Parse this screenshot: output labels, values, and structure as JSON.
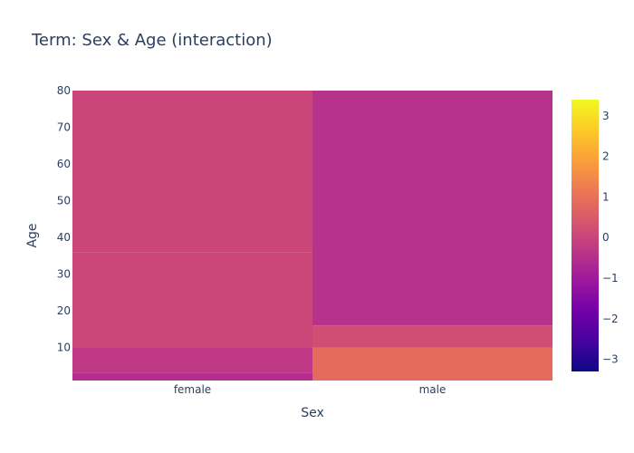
{
  "chart_data": {
    "type": "heatmap",
    "title": "Term: Sex & Age (interaction)",
    "xlabel": "Sex",
    "ylabel": "Age",
    "categories": [
      "female",
      "male"
    ],
    "ylim": [
      1,
      80
    ],
    "y_ticks": [
      10,
      20,
      30,
      40,
      50,
      60,
      70,
      80
    ],
    "colorscale": {
      "name": "plasma",
      "min": -3.3,
      "max": 3.4,
      "ticks": [
        -3,
        -2,
        -1,
        0,
        1,
        2,
        3
      ],
      "tick_labels": [
        "−3",
        "−2",
        "−1",
        "0",
        "1",
        "2",
        "3"
      ]
    },
    "cells": [
      {
        "sex": "female",
        "y_from": 1,
        "y_to": 3,
        "value": -0.55
      },
      {
        "sex": "female",
        "y_from": 3,
        "y_to": 10,
        "value": -0.3
      },
      {
        "sex": "female",
        "y_from": 10,
        "y_to": 36,
        "value": 0.05
      },
      {
        "sex": "female",
        "y_from": 36,
        "y_to": 80,
        "value": 0.0
      },
      {
        "sex": "male",
        "y_from": 1,
        "y_to": 10,
        "value": 0.85
      },
      {
        "sex": "male",
        "y_from": 10,
        "y_to": 16,
        "value": 0.2
      },
      {
        "sex": "male",
        "y_from": 16,
        "y_to": 80,
        "value": -0.45
      }
    ]
  }
}
